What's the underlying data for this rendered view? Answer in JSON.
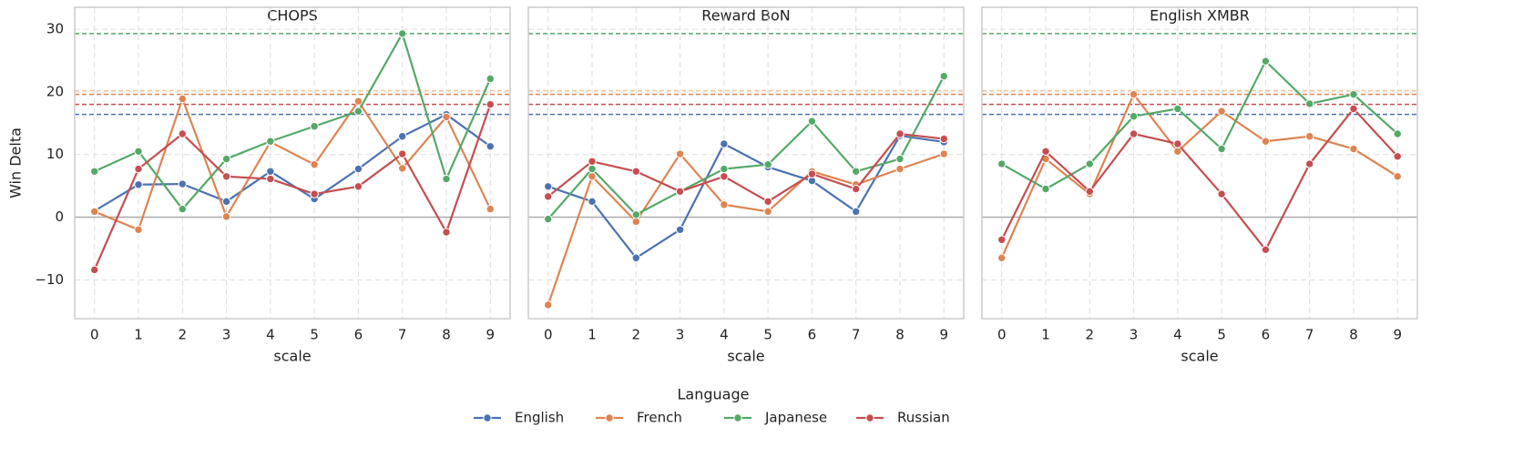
{
  "chart_data": [
    {
      "type": "line",
      "title": "CHOPS",
      "xlabel": "scale",
      "ylabel": "Win Delta",
      "x": [
        0,
        1,
        2,
        3,
        4,
        5,
        6,
        7,
        8,
        9
      ],
      "xlim": [
        -0.45,
        9.45
      ],
      "xticks": [
        0,
        1,
        2,
        3,
        4,
        5,
        6,
        7,
        8,
        9
      ],
      "ylim": [
        -16.2,
        33.5
      ],
      "yticks": [
        {
          "value": -10,
          "label": "−10"
        },
        0,
        10,
        20,
        30
      ],
      "grid": true,
      "hlines": [
        {
          "value": 0,
          "color": "#aaaaaa",
          "style": "solid"
        },
        {
          "value": 29.3,
          "color": "#55a868",
          "style": "dashed"
        },
        {
          "value": 20.2,
          "color": "#f2c9a6",
          "style": "dashed"
        },
        {
          "value": 19.6,
          "color": "#dd8452",
          "style": "dashed"
        },
        {
          "value": 18.0,
          "color": "#c44e52",
          "style": "dashed"
        },
        {
          "value": 16.4,
          "color": "#4c72b0",
          "style": "dashed"
        }
      ],
      "series": [
        {
          "name": "English",
          "color": "#4c72b0",
          "values": [
            1.0,
            5.2,
            5.3,
            2.5,
            7.3,
            2.9,
            7.7,
            12.9,
            16.4,
            11.3
          ]
        },
        {
          "name": "French",
          "color": "#dd8452",
          "values": [
            0.9,
            -2.0,
            18.9,
            0.1,
            12.0,
            8.4,
            18.5,
            7.8,
            16.0,
            1.3
          ]
        },
        {
          "name": "Japanese",
          "color": "#55a868",
          "values": [
            7.3,
            10.5,
            1.3,
            9.3,
            12.1,
            14.5,
            16.9,
            29.3,
            6.1,
            22.1
          ]
        },
        {
          "name": "Russian",
          "color": "#c44e52",
          "values": [
            -8.4,
            7.7,
            13.3,
            6.5,
            6.1,
            3.7,
            4.9,
            10.1,
            -2.4,
            18.0
          ]
        }
      ]
    },
    {
      "type": "line",
      "title": "Reward BoN",
      "xlabel": "scale",
      "x": [
        0,
        1,
        2,
        3,
        4,
        5,
        6,
        7,
        8,
        9
      ],
      "xlim": [
        -0.45,
        9.45
      ],
      "xticks": [
        0,
        1,
        2,
        3,
        4,
        5,
        6,
        7,
        8,
        9
      ],
      "ylim": [
        -16.2,
        33.5
      ],
      "yticks": [
        -10,
        0,
        10,
        20,
        30
      ],
      "grid": true,
      "hlines": [
        {
          "value": 0,
          "color": "#aaaaaa",
          "style": "solid"
        },
        {
          "value": 29.3,
          "color": "#55a868",
          "style": "dashed"
        },
        {
          "value": 20.2,
          "color": "#f2c9a6",
          "style": "dashed"
        },
        {
          "value": 19.6,
          "color": "#dd8452",
          "style": "dashed"
        },
        {
          "value": 18.0,
          "color": "#c44e52",
          "style": "dashed"
        },
        {
          "value": 16.4,
          "color": "#4c72b0",
          "style": "dashed"
        }
      ],
      "series": [
        {
          "name": "English",
          "color": "#4c72b0",
          "values": [
            4.9,
            2.5,
            -6.5,
            -2.0,
            11.7,
            8.0,
            5.8,
            0.9,
            13.0,
            12.0
          ]
        },
        {
          "name": "French",
          "color": "#dd8452",
          "values": [
            -14.0,
            6.5,
            -0.7,
            10.1,
            2.0,
            0.9,
            7.3,
            5.2,
            7.7,
            10.1
          ]
        },
        {
          "name": "Japanese",
          "color": "#55a868",
          "values": [
            -0.3,
            7.7,
            0.4,
            4.1,
            7.7,
            8.4,
            15.3,
            7.3,
            9.3,
            22.5
          ]
        },
        {
          "name": "Russian",
          "color": "#c44e52",
          "values": [
            3.3,
            8.9,
            7.3,
            4.1,
            6.5,
            2.5,
            6.9,
            4.5,
            13.3,
            12.5
          ]
        }
      ]
    },
    {
      "type": "line",
      "title": "English XMBR",
      "xlabel": "scale",
      "x": [
        0,
        1,
        2,
        3,
        4,
        5,
        6,
        7,
        8,
        9
      ],
      "xlim": [
        -0.45,
        9.45
      ],
      "xticks": [
        0,
        1,
        2,
        3,
        4,
        5,
        6,
        7,
        8,
        9
      ],
      "ylim": [
        -16.2,
        33.5
      ],
      "yticks": [
        -10,
        0,
        10,
        20,
        30
      ],
      "grid": true,
      "hlines": [
        {
          "value": 0,
          "color": "#aaaaaa",
          "style": "solid"
        },
        {
          "value": 29.3,
          "color": "#55a868",
          "style": "dashed"
        },
        {
          "value": 20.2,
          "color": "#f2c9a6",
          "style": "dashed"
        },
        {
          "value": 19.6,
          "color": "#dd8452",
          "style": "dashed"
        },
        {
          "value": 18.0,
          "color": "#c44e52",
          "style": "dashed"
        },
        {
          "value": 16.4,
          "color": "#4c72b0",
          "style": "dashed"
        }
      ],
      "series": [
        {
          "name": "English",
          "color": "#4c72b0",
          "values": [
            null,
            null,
            null,
            null,
            null,
            null,
            null,
            null,
            null,
            null
          ]
        },
        {
          "name": "French",
          "color": "#dd8452",
          "values": [
            -6.5,
            9.3,
            3.7,
            19.6,
            10.5,
            16.9,
            12.1,
            12.9,
            10.9,
            6.5
          ]
        },
        {
          "name": "Japanese",
          "color": "#55a868",
          "values": [
            8.5,
            4.5,
            8.5,
            16.1,
            17.3,
            10.9,
            24.9,
            18.1,
            19.6,
            13.3
          ]
        },
        {
          "name": "Russian",
          "color": "#c44e52",
          "values": [
            -3.6,
            10.5,
            4.1,
            13.3,
            11.7,
            3.7,
            -5.2,
            8.5,
            17.3,
            9.7
          ]
        }
      ]
    }
  ],
  "legend": {
    "title": "Language"
  }
}
